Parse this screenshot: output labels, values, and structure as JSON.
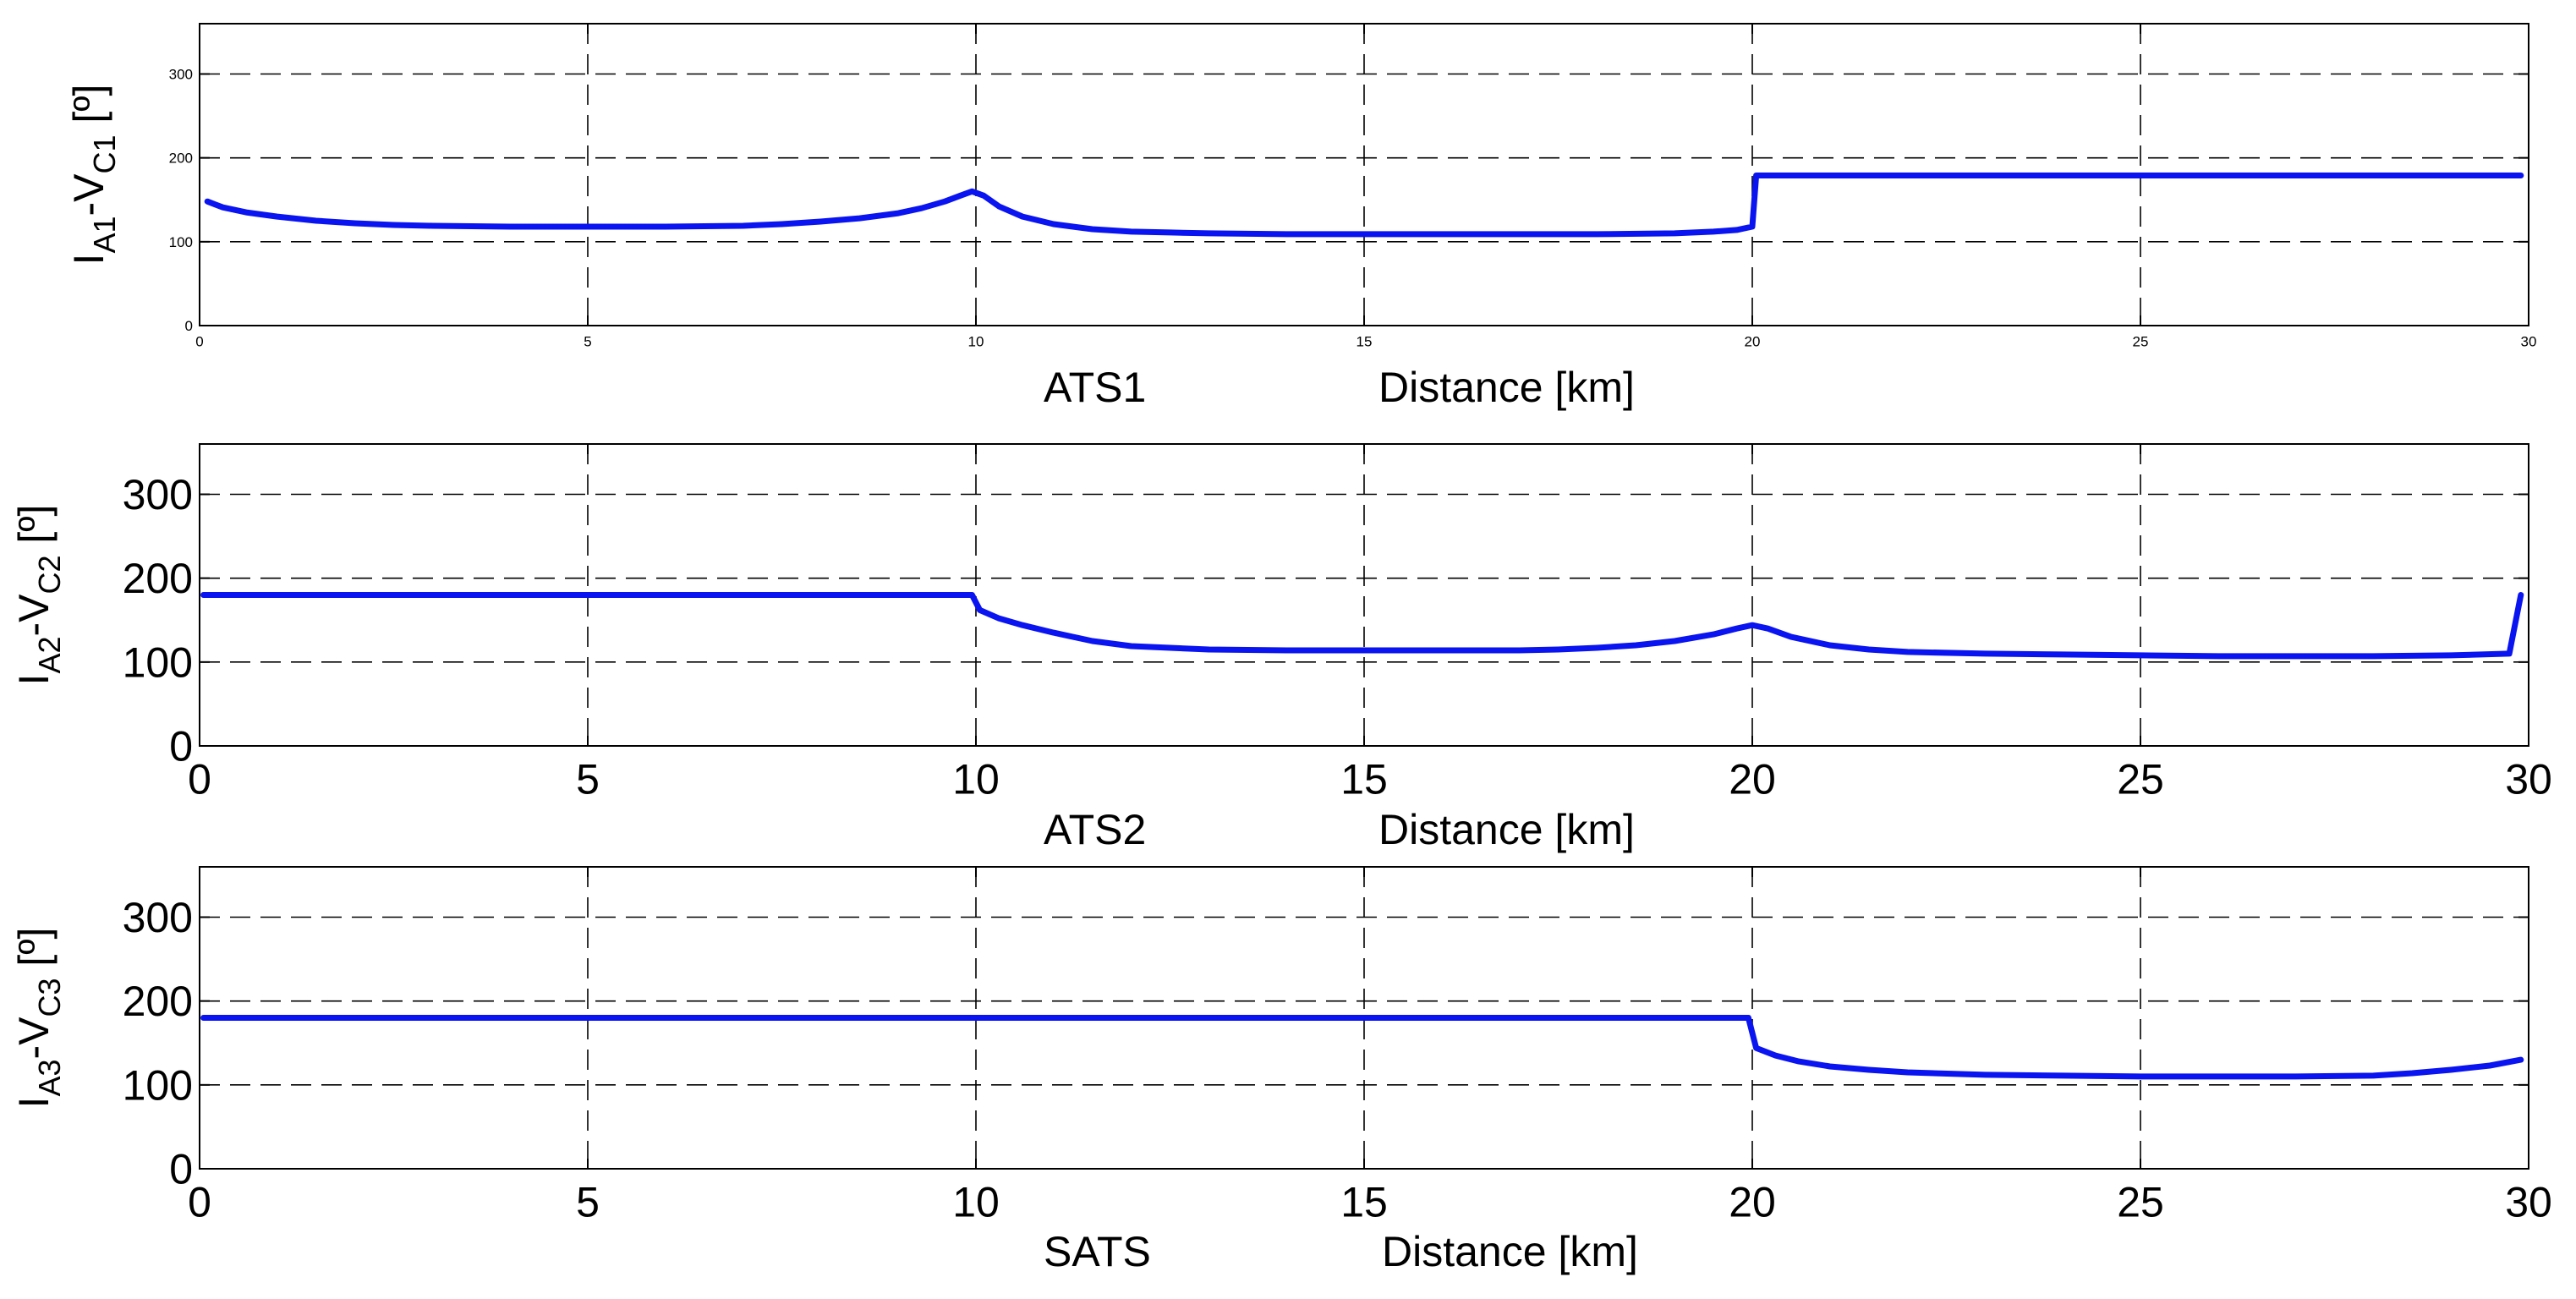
{
  "chart_data": [
    {
      "type": "line",
      "panel_label": "ATS1",
      "xlabel": "Distance [km]",
      "ylabel": {
        "base": "I",
        "sub1": "A1",
        "mid": "-V",
        "sub2": "C1",
        "unit": " [º]"
      },
      "xlim": [
        0,
        30
      ],
      "ylim": [
        0,
        360
      ],
      "xticks": [
        0,
        5,
        10,
        15,
        20,
        25,
        30
      ],
      "yticks": [
        0,
        100,
        200,
        300
      ],
      "grid": true,
      "colors": {
        "line": "#0a14f0",
        "grid": "#000000"
      },
      "series": [
        {
          "x": [
            0.1,
            0.3,
            0.6,
            1,
            1.5,
            2,
            2.5,
            3,
            4,
            5,
            6,
            7,
            7.5,
            8,
            8.5,
            9,
            9.3,
            9.6,
            9.8,
            9.95,
            10.1,
            10.3,
            10.6,
            11,
            11.5,
            12,
            12.5,
            13,
            14,
            15,
            16,
            17,
            18,
            19,
            19.5,
            19.8,
            20.0,
            20.05,
            21,
            22,
            23,
            24,
            25,
            26,
            27,
            28,
            29,
            29.9
          ],
          "y": [
            148,
            141,
            135,
            130,
            125,
            122,
            120,
            119,
            118,
            118,
            118,
            119,
            121,
            124,
            128,
            134,
            140,
            148,
            155,
            160,
            155,
            142,
            130,
            121,
            115,
            112,
            111,
            110,
            109,
            109,
            109,
            109,
            109,
            110,
            112,
            114,
            118,
            179,
            179,
            179,
            179,
            179,
            179,
            179,
            179,
            179,
            179,
            179
          ]
        }
      ]
    },
    {
      "type": "line",
      "panel_label": "ATS2",
      "xlabel": "Distance [km]",
      "ylabel": {
        "base": "I",
        "sub1": "A2",
        "mid": "-V",
        "sub2": "C2",
        "unit": " [º]"
      },
      "xlim": [
        0,
        30
      ],
      "ylim": [
        0,
        360
      ],
      "xticks": [
        0,
        5,
        10,
        15,
        20,
        25,
        30
      ],
      "yticks": [
        0,
        100,
        200,
        300
      ],
      "grid": true,
      "colors": {
        "line": "#0a14f0",
        "grid": "#000000"
      },
      "series": [
        {
          "x": [
            0.05,
            2,
            4,
            6,
            8,
            9.95,
            10.05,
            10.3,
            10.6,
            11,
            11.5,
            12,
            13,
            14,
            15,
            16,
            17,
            17.5,
            18,
            18.5,
            19,
            19.5,
            19.8,
            20,
            20.2,
            20.5,
            21,
            21.5,
            22,
            23,
            24,
            25,
            26,
            27,
            28,
            29,
            29.75,
            29.9
          ],
          "y": [
            180,
            180,
            180,
            180,
            180,
            180,
            162,
            152,
            144,
            135,
            125,
            119,
            115,
            114,
            114,
            114,
            114,
            115,
            117,
            120,
            125,
            133,
            140,
            144,
            140,
            130,
            120,
            115,
            112,
            110,
            109,
            108,
            107,
            107,
            107,
            108,
            110,
            180
          ]
        }
      ]
    },
    {
      "type": "line",
      "panel_label": "SATS",
      "xlabel": "Distance [km]",
      "ylabel": {
        "base": "I",
        "sub1": "A3",
        "mid": "-V",
        "sub2": "C3",
        "unit": " [º]"
      },
      "xlim": [
        0,
        30
      ],
      "ylim": [
        0,
        360
      ],
      "xticks": [
        0,
        5,
        10,
        15,
        20,
        25,
        30
      ],
      "yticks": [
        0,
        100,
        200,
        300
      ],
      "grid": true,
      "colors": {
        "line": "#0a14f0",
        "grid": "#000000"
      },
      "series": [
        {
          "x": [
            0.05,
            5,
            10,
            15,
            19.95,
            20.05,
            20.3,
            20.6,
            21,
            21.5,
            22,
            23,
            24,
            25,
            26,
            27,
            28,
            28.5,
            29,
            29.5,
            29.9
          ],
          "y": [
            180,
            180,
            180,
            180,
            180,
            144,
            135,
            128,
            122,
            118,
            115,
            112,
            111,
            110,
            110,
            110,
            111,
            114,
            118,
            123,
            130
          ]
        }
      ]
    }
  ]
}
